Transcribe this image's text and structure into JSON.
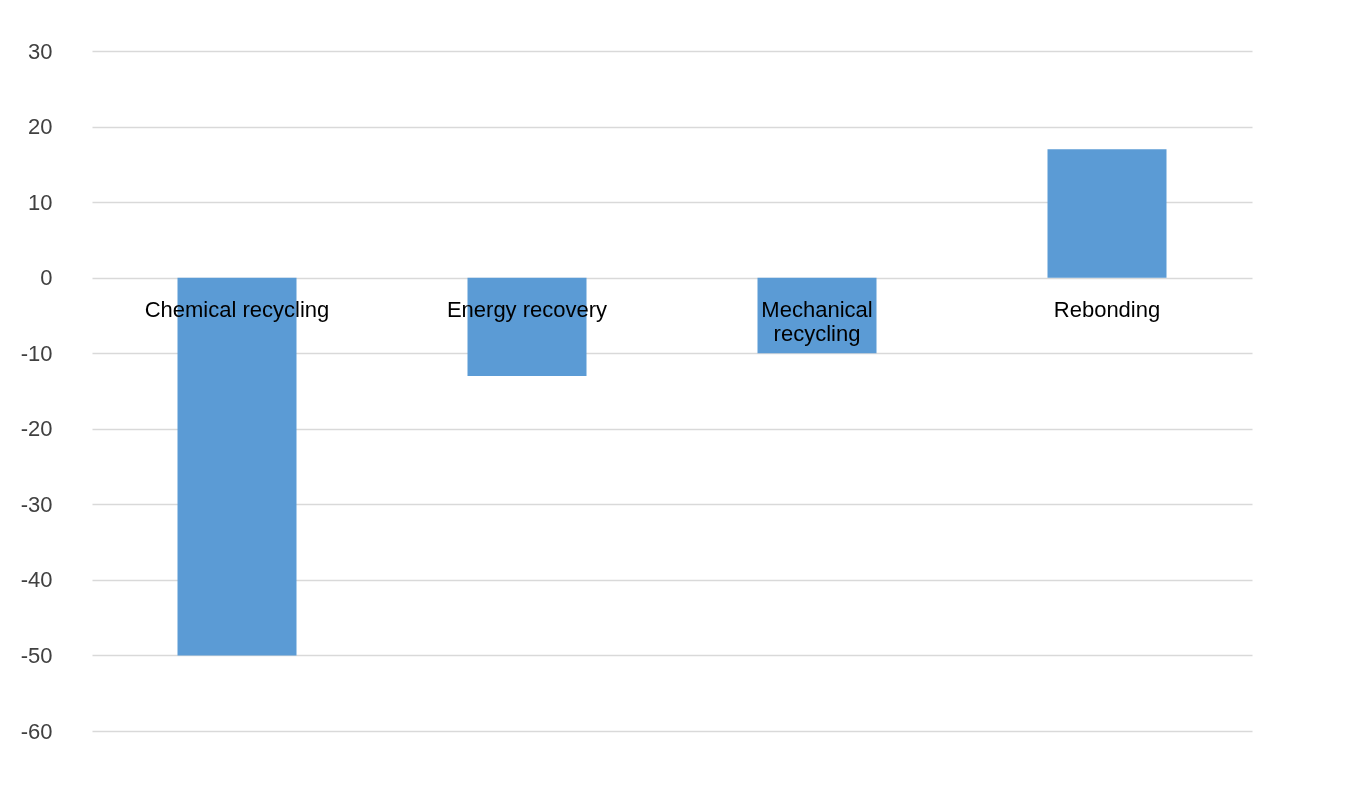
{
  "chart_data": {
    "type": "bar",
    "categories": [
      "Chemical recycling",
      "Energy recovery",
      "Mechanical recycling",
      "Rebonding"
    ],
    "values": [
      -50,
      -13,
      -10,
      17
    ],
    "color": "#5b9bd5",
    "ylim": [
      -60,
      30
    ],
    "yticks": [
      -60,
      -50,
      -40,
      -30,
      -20,
      -10,
      0,
      10,
      20,
      30
    ],
    "grid": "y",
    "legend": false
  }
}
